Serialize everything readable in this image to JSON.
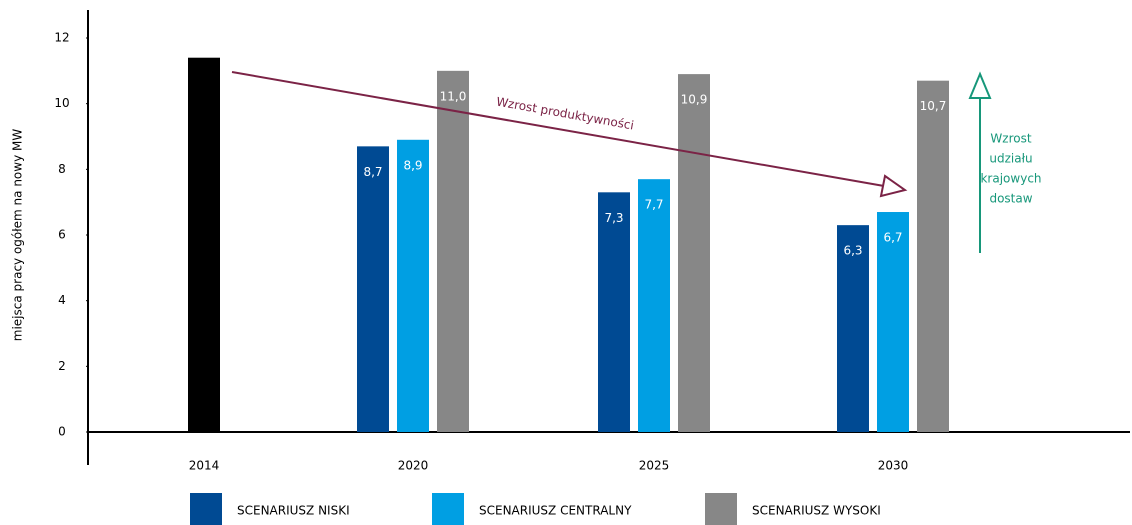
{
  "chart_data": {
    "type": "bar",
    "y_label": "miejsca pracy ogółem na nowy MW",
    "categories": [
      "2014",
      "2020",
      "2025",
      "2030"
    ],
    "series": [
      {
        "color": "#000000",
        "values": [
          11.4,
          null,
          null,
          null
        ]
      },
      {
        "name": "SCENARIUSZ NISKI",
        "color": "#004a93",
        "values": [
          null,
          8.7,
          7.3,
          6.3
        ],
        "value_labels": [
          null,
          "8,7",
          "7,3",
          "6,3"
        ]
      },
      {
        "name": "SCENARIUSZ CENTRALNY",
        "color": "#009fe3",
        "values": [
          null,
          8.9,
          7.7,
          6.7
        ],
        "value_labels": [
          null,
          "8,9",
          "7,7",
          "6,7"
        ]
      },
      {
        "name": "SCENARIUSZ WYSOKI",
        "color": "#878787",
        "values": [
          null,
          11.0,
          10.9,
          10.7
        ],
        "value_labels": [
          null,
          "11,0",
          "10,9",
          "10,7"
        ]
      }
    ],
    "ylim": [
      0,
      12
    ],
    "yticks": [
      0,
      2,
      4,
      6,
      8,
      10,
      12
    ],
    "annotations": [
      {
        "text": "Wzrost produktywności",
        "color": "#7b2346"
      },
      {
        "lines": [
          "Wzrost",
          "udziału",
          "krajowych",
          "dostaw"
        ],
        "color": "#17977a"
      }
    ]
  }
}
